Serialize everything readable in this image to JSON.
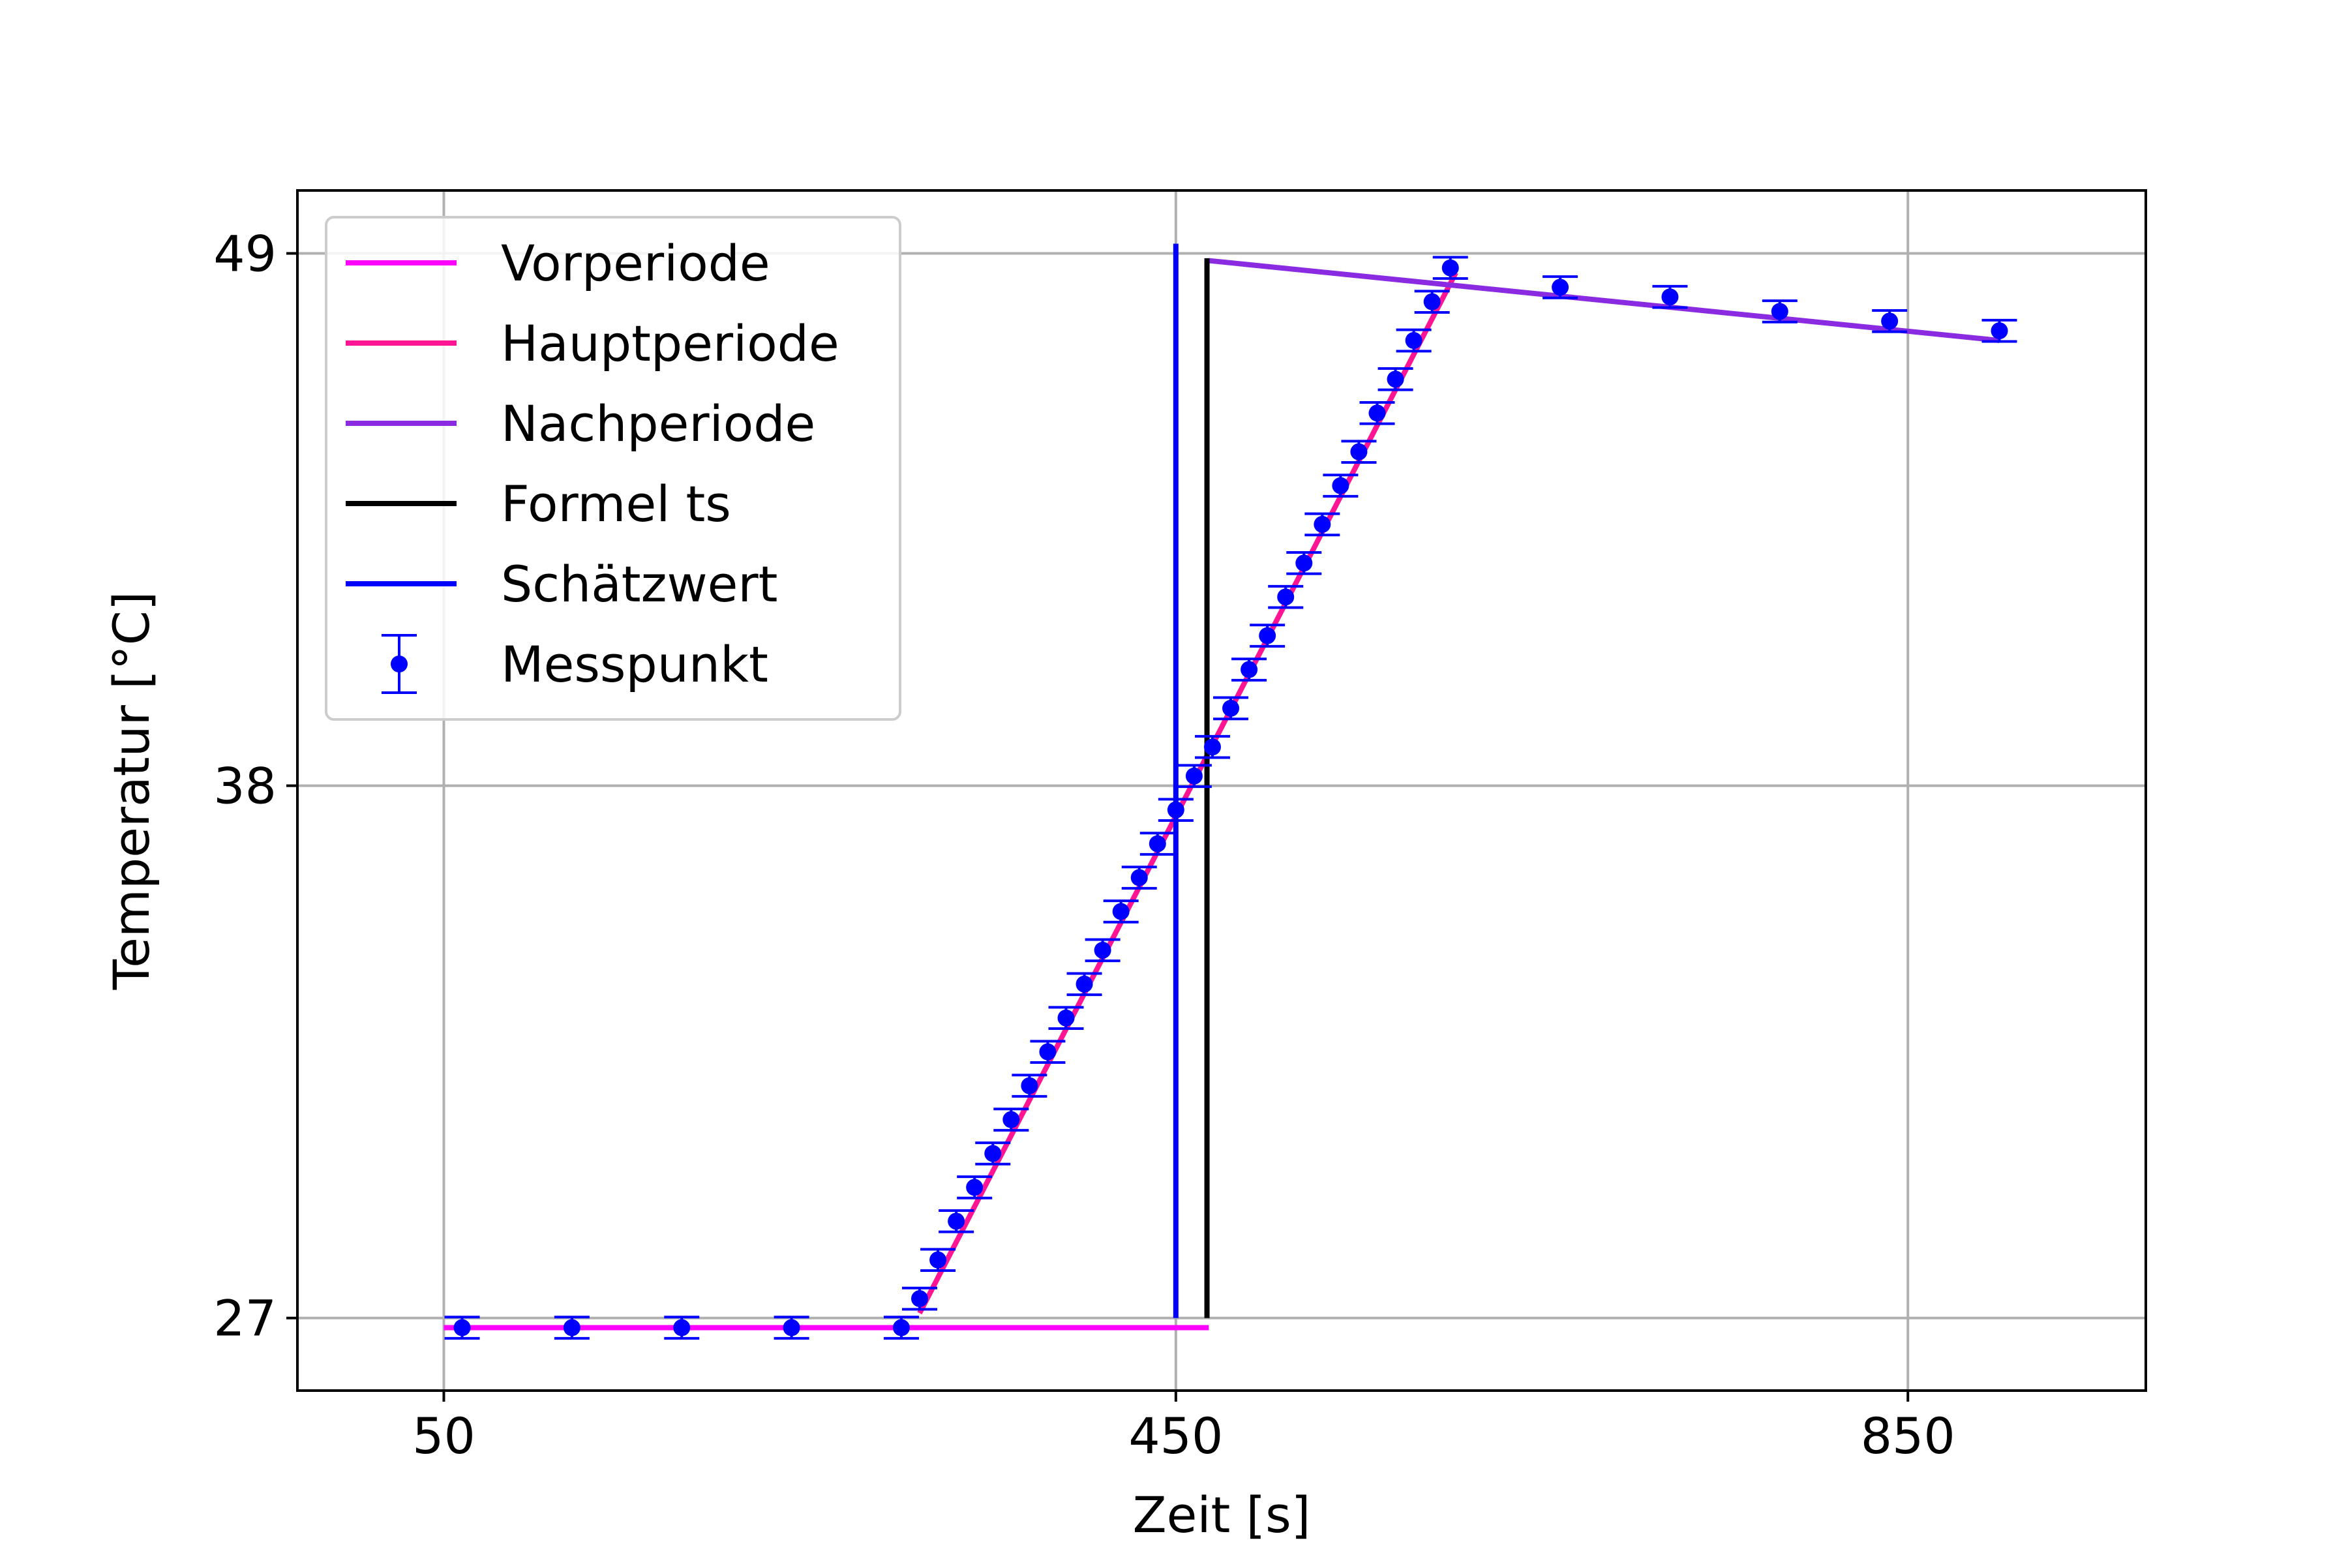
{
  "chart_data": {
    "type": "line",
    "title": "",
    "xlabel": "Zeit [s]",
    "ylabel": "Temperatur [°C]",
    "xlim": [
      -30,
      980
    ],
    "ylim": [
      25.5,
      50.3
    ],
    "x_ticks": [
      50,
      450,
      850
    ],
    "y_ticks": [
      27,
      38,
      49
    ],
    "x_tick_labels": [
      "50",
      "450",
      "850"
    ],
    "y_tick_labels": [
      "27",
      "38",
      "49"
    ],
    "grid": true,
    "legend_position": "top-left",
    "series": [
      {
        "name": "Vorperiode",
        "kind": "line",
        "color": "#ff00ff",
        "x": [
          50,
          468
        ],
        "y": [
          26.8,
          26.8
        ]
      },
      {
        "name": "Hauptperiode",
        "kind": "line",
        "color": "#ff1493",
        "x": [
          310,
          603
        ],
        "y": [
          27.1,
          48.6
        ]
      },
      {
        "name": "Nachperiode",
        "kind": "line",
        "color": "#8a2be2",
        "x": [
          468,
          900
        ],
        "y": [
          48.85,
          47.2
        ]
      },
      {
        "name": "Formel ts",
        "kind": "vline",
        "color": "#000000",
        "x": [
          467,
          467
        ],
        "y": [
          27,
          48.9
        ]
      },
      {
        "name": "Schätzwert",
        "kind": "vline",
        "color": "#0000ff",
        "x": [
          450,
          450
        ],
        "y": [
          27,
          49.2
        ]
      },
      {
        "name": "Messpunkt",
        "kind": "errorbar",
        "color": "#0000ff",
        "yerr": 0.22,
        "x": [
          60,
          120,
          180,
          240,
          300,
          310,
          320,
          330,
          340,
          350,
          360,
          370,
          380,
          390,
          400,
          410,
          420,
          430,
          440,
          450,
          460,
          470,
          480,
          490,
          500,
          510,
          520,
          530,
          540,
          550,
          560,
          570,
          580,
          590,
          600,
          660,
          720,
          780,
          840,
          900
        ],
        "y": [
          26.8,
          26.8,
          26.8,
          26.8,
          26.8,
          27.4,
          28.2,
          29.0,
          29.7,
          30.4,
          31.1,
          31.8,
          32.5,
          33.2,
          33.9,
          34.6,
          35.4,
          36.1,
          36.8,
          37.5,
          38.2,
          38.8,
          39.6,
          40.4,
          41.1,
          41.9,
          42.6,
          43.4,
          44.2,
          44.9,
          45.7,
          46.4,
          47.2,
          48.0,
          48.7,
          48.3,
          48.1,
          47.8,
          47.6,
          47.4
        ]
      }
    ]
  }
}
